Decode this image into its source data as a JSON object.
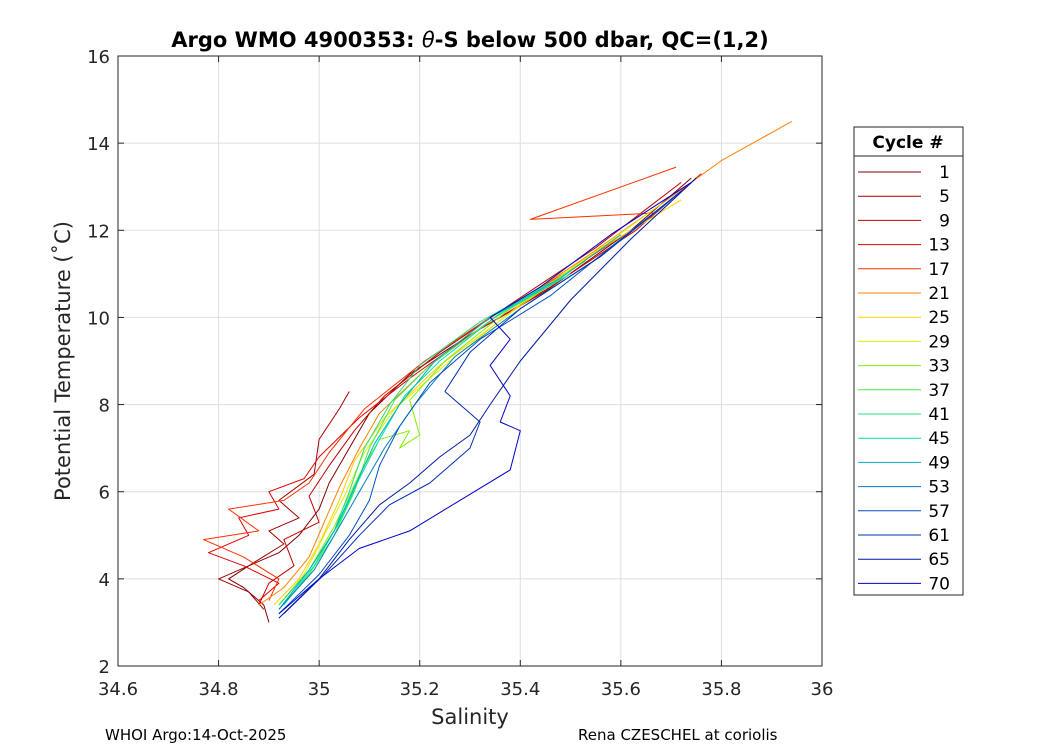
{
  "chart_data": {
    "type": "line",
    "title_prefix": "Argo WMO 4900353: ",
    "title_symbol": "θ",
    "title_suffix": "-S below 500 dbar,  QC=(1,2)",
    "xlabel": "Salinity",
    "ylabel": "Potential Temperature (˚C)",
    "xlim": [
      34.6,
      36
    ],
    "ylim": [
      2,
      16
    ],
    "xticks": [
      34.6,
      34.8,
      35,
      35.2,
      35.4,
      35.6,
      35.8,
      36
    ],
    "xtick_labels": [
      "34.6",
      "34.8",
      "35",
      "35.2",
      "35.4",
      "35.6",
      "35.8",
      "36"
    ],
    "yticks": [
      2,
      4,
      6,
      8,
      10,
      12,
      14,
      16
    ],
    "ytick_labels": [
      "2",
      "4",
      "6",
      "8",
      "10",
      "12",
      "14",
      "16"
    ],
    "grid": true,
    "legend_title": "Cycle #",
    "legend_position": "right, outside plot",
    "series": [
      {
        "name": "1",
        "color": "#800000",
        "points": [
          [
            34.9,
            3.0
          ],
          [
            34.89,
            3.4
          ],
          [
            34.85,
            3.8
          ],
          [
            34.82,
            4.0
          ],
          [
            34.86,
            4.3
          ],
          [
            34.92,
            4.6
          ],
          [
            34.96,
            5.0
          ],
          [
            35.0,
            5.6
          ],
          [
            35.02,
            6.2
          ],
          [
            35.06,
            7.0
          ],
          [
            35.1,
            7.8
          ],
          [
            35.18,
            8.7
          ],
          [
            35.3,
            9.6
          ],
          [
            35.45,
            10.6
          ],
          [
            35.62,
            12.0
          ],
          [
            35.74,
            13.2
          ]
        ]
      },
      {
        "name": "5",
        "color": "#a00000",
        "points": [
          [
            34.89,
            3.3
          ],
          [
            34.86,
            3.7
          ],
          [
            34.8,
            4.0
          ],
          [
            34.86,
            4.3
          ],
          [
            34.93,
            4.8
          ],
          [
            34.9,
            5.1
          ],
          [
            34.96,
            5.4
          ],
          [
            34.92,
            5.8
          ],
          [
            34.99,
            6.4
          ],
          [
            35.0,
            7.2
          ],
          [
            35.04,
            7.9
          ],
          [
            35.06,
            8.3
          ]
        ]
      },
      {
        "name": "9",
        "color": "#c00000",
        "points": [
          [
            34.88,
            3.4
          ],
          [
            34.9,
            3.9
          ],
          [
            34.95,
            4.3
          ],
          [
            34.93,
            4.9
          ],
          [
            35.0,
            5.3
          ],
          [
            34.98,
            5.9
          ],
          [
            35.02,
            6.6
          ],
          [
            35.07,
            7.4
          ],
          [
            35.13,
            8.2
          ],
          [
            35.24,
            9.2
          ],
          [
            35.38,
            10.3
          ],
          [
            35.55,
            11.6
          ],
          [
            35.72,
            13.1
          ]
        ]
      },
      {
        "name": "13",
        "color": "#e00000",
        "points": [
          [
            34.88,
            3.5
          ],
          [
            34.92,
            3.9
          ],
          [
            34.85,
            4.3
          ],
          [
            34.78,
            4.6
          ],
          [
            34.86,
            5.0
          ],
          [
            34.84,
            5.4
          ],
          [
            34.92,
            5.6
          ],
          [
            34.9,
            6.0
          ],
          [
            34.97,
            6.3
          ],
          [
            35.0,
            6.8
          ],
          [
            35.08,
            7.7
          ],
          [
            35.18,
            8.6
          ],
          [
            35.3,
            9.6
          ],
          [
            35.46,
            10.7
          ],
          [
            35.63,
            12.0
          ],
          [
            35.76,
            13.3
          ]
        ]
      },
      {
        "name": "17",
        "color": "#ff3000",
        "points": [
          [
            34.9,
            3.5
          ],
          [
            34.92,
            4.0
          ],
          [
            34.85,
            4.5
          ],
          [
            34.77,
            4.9
          ],
          [
            34.88,
            5.1
          ],
          [
            34.82,
            5.6
          ],
          [
            34.93,
            5.8
          ],
          [
            34.98,
            6.2
          ],
          [
            35.02,
            6.9
          ],
          [
            35.09,
            7.9
          ],
          [
            35.21,
            9.0
          ],
          [
            35.34,
            10.0
          ],
          [
            35.5,
            11.1
          ],
          [
            35.62,
            12.0
          ],
          [
            35.67,
            12.4
          ],
          [
            35.42,
            12.25
          ],
          [
            35.71,
            13.45
          ]
        ]
      },
      {
        "name": "21",
        "color": "#ff8000",
        "points": [
          [
            34.88,
            3.4
          ],
          [
            34.93,
            3.8
          ],
          [
            34.98,
            4.5
          ],
          [
            35.01,
            5.3
          ],
          [
            35.04,
            6.1
          ],
          [
            35.08,
            7.0
          ],
          [
            35.12,
            7.8
          ],
          [
            35.22,
            8.9
          ],
          [
            35.36,
            10.1
          ],
          [
            35.52,
            11.3
          ],
          [
            35.68,
            12.6
          ],
          [
            35.8,
            13.6
          ],
          [
            35.94,
            14.5
          ]
        ]
      },
      {
        "name": "25",
        "color": "#ffd000",
        "points": [
          [
            34.91,
            3.4
          ],
          [
            34.96,
            4.0
          ],
          [
            35.0,
            4.8
          ],
          [
            35.04,
            5.8
          ],
          [
            35.07,
            6.7
          ],
          [
            35.13,
            7.7
          ],
          [
            35.24,
            8.9
          ],
          [
            35.38,
            10.1
          ],
          [
            35.55,
            11.5
          ],
          [
            35.72,
            12.7
          ]
        ]
      },
      {
        "name": "29",
        "color": "#e0f000",
        "points": [
          [
            34.92,
            3.4
          ],
          [
            34.97,
            4.1
          ],
          [
            35.01,
            5.0
          ],
          [
            35.05,
            5.9
          ],
          [
            35.09,
            6.9
          ],
          [
            35.15,
            7.9
          ],
          [
            35.26,
            9.0
          ],
          [
            35.4,
            10.3
          ],
          [
            35.56,
            11.6
          ],
          [
            35.68,
            12.6
          ]
        ]
      },
      {
        "name": "33",
        "color": "#80f000",
        "points": [
          [
            34.92,
            3.4
          ],
          [
            34.98,
            4.2
          ],
          [
            35.03,
            5.2
          ],
          [
            35.08,
            6.4
          ],
          [
            35.12,
            7.2
          ],
          [
            35.18,
            7.4
          ],
          [
            35.16,
            7.0
          ],
          [
            35.2,
            7.3
          ],
          [
            35.18,
            8.1
          ],
          [
            35.25,
            9.0
          ],
          [
            35.38,
            10.2
          ],
          [
            35.53,
            11.3
          ]
        ]
      },
      {
        "name": "37",
        "color": "#40f040",
        "points": [
          [
            34.92,
            3.3
          ],
          [
            34.98,
            4.1
          ],
          [
            35.03,
            5.0
          ],
          [
            35.07,
            6.0
          ],
          [
            35.1,
            7.0
          ],
          [
            35.15,
            8.1
          ],
          [
            35.22,
            8.9
          ],
          [
            35.35,
            10.0
          ],
          [
            35.5,
            11.0
          ]
        ]
      },
      {
        "name": "41",
        "color": "#20e080",
        "points": [
          [
            34.92,
            3.4
          ],
          [
            34.98,
            4.2
          ],
          [
            35.03,
            5.1
          ],
          [
            35.06,
            6.0
          ],
          [
            35.09,
            7.0
          ],
          [
            35.14,
            8.0
          ],
          [
            35.2,
            8.9
          ],
          [
            35.32,
            9.9
          ],
          [
            35.46,
            10.8
          ]
        ]
      },
      {
        "name": "45",
        "color": "#00e0b0",
        "points": [
          [
            34.93,
            3.4
          ],
          [
            34.99,
            4.3
          ],
          [
            35.04,
            5.3
          ],
          [
            35.08,
            6.3
          ],
          [
            35.12,
            7.2
          ],
          [
            35.17,
            8.2
          ],
          [
            35.24,
            9.0
          ],
          [
            35.36,
            10.1
          ],
          [
            35.5,
            11.0
          ]
        ]
      },
      {
        "name": "49",
        "color": "#00b0c0",
        "points": [
          [
            34.92,
            3.3
          ],
          [
            34.98,
            4.2
          ],
          [
            35.03,
            5.1
          ],
          [
            35.07,
            6.1
          ],
          [
            35.11,
            7.1
          ],
          [
            35.16,
            8.0
          ],
          [
            35.23,
            9.0
          ],
          [
            35.34,
            10.0
          ],
          [
            35.48,
            10.9
          ],
          [
            35.6,
            11.9
          ]
        ]
      },
      {
        "name": "53",
        "color": "#0080c0",
        "points": [
          [
            34.92,
            3.3
          ],
          [
            34.99,
            4.2
          ],
          [
            35.04,
            5.2
          ],
          [
            35.09,
            6.2
          ],
          [
            35.13,
            7.0
          ],
          [
            35.19,
            8.0
          ],
          [
            35.27,
            9.1
          ],
          [
            35.4,
            10.2
          ],
          [
            35.56,
            11.4
          ],
          [
            35.7,
            12.7
          ]
        ]
      },
      {
        "name": "57",
        "color": "#0050c0",
        "points": [
          [
            34.92,
            3.2
          ],
          [
            35.0,
            4.1
          ],
          [
            35.06,
            5.0
          ],
          [
            35.1,
            5.8
          ],
          [
            35.12,
            6.6
          ],
          [
            35.16,
            7.5
          ],
          [
            35.22,
            8.5
          ],
          [
            35.32,
            9.5
          ],
          [
            35.46,
            10.5
          ],
          [
            35.6,
            11.8
          ],
          [
            35.72,
            12.9
          ]
        ]
      },
      {
        "name": "61",
        "color": "#0030b0",
        "points": [
          [
            34.93,
            3.2
          ],
          [
            35.01,
            4.1
          ],
          [
            35.08,
            5.0
          ],
          [
            35.14,
            5.7
          ],
          [
            35.22,
            6.2
          ],
          [
            35.3,
            7.0
          ],
          [
            35.32,
            7.6
          ],
          [
            35.25,
            8.3
          ],
          [
            35.3,
            9.2
          ],
          [
            35.4,
            10.2
          ],
          [
            35.56,
            11.4
          ],
          [
            35.72,
            12.9
          ]
        ]
      },
      {
        "name": "65",
        "color": "#0018a0",
        "points": [
          [
            34.92,
            3.1
          ],
          [
            35.0,
            4.0
          ],
          [
            35.06,
            4.9
          ],
          [
            35.12,
            5.7
          ],
          [
            35.18,
            6.2
          ],
          [
            35.24,
            6.8
          ],
          [
            35.3,
            7.3
          ],
          [
            35.34,
            8.0
          ],
          [
            35.4,
            9.0
          ],
          [
            35.5,
            10.4
          ],
          [
            35.62,
            11.8
          ],
          [
            35.75,
            13.2
          ]
        ]
      },
      {
        "name": "70",
        "color": "#0000d0",
        "points": [
          [
            34.92,
            3.2
          ],
          [
            35.0,
            4.0
          ],
          [
            35.08,
            4.7
          ],
          [
            35.18,
            5.1
          ],
          [
            35.28,
            5.8
          ],
          [
            35.38,
            6.5
          ],
          [
            35.4,
            7.4
          ],
          [
            35.36,
            7.6
          ],
          [
            35.38,
            8.2
          ],
          [
            35.34,
            8.9
          ],
          [
            35.38,
            9.5
          ],
          [
            35.34,
            10.0
          ],
          [
            35.44,
            10.7
          ],
          [
            35.58,
            11.9
          ],
          [
            35.74,
            13.1
          ]
        ]
      }
    ]
  },
  "footer": {
    "left": "WHOI Argo:14-Oct-2025",
    "right": "Rena CZESCHEL at coriolis"
  }
}
